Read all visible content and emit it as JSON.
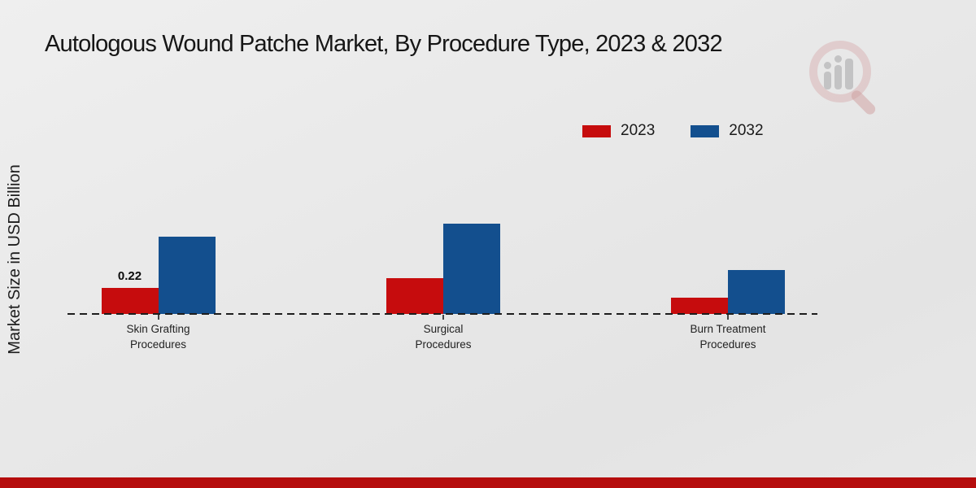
{
  "title": "Autologous Wound Patche Market, By Procedure Type, 2023 & 2032",
  "watermark_icon": "magnifier-bar-chart-logo",
  "colors": {
    "bar_red": "#c60c0d",
    "bar_blue": "#134f8e",
    "footer_stripe_red": "#b50d0d"
  },
  "chart_data": {
    "type": "bar",
    "title": "Autologous Wound Patche Market, By Procedure Type, 2023 & 2032",
    "xlabel": "",
    "ylabel": "Market Size in USD Billion",
    "categories": [
      "Skin Grafting Procedures",
      "Surgical Procedures",
      "Burn Treatment Procedures"
    ],
    "series": [
      {
        "name": "2023",
        "color": "#c60c0d",
        "values": [
          0.22,
          0.3,
          0.14
        ],
        "data_labels": [
          "0.22",
          null,
          null
        ]
      },
      {
        "name": "2032",
        "color": "#134f8e",
        "values": [
          0.65,
          0.76,
          0.37
        ],
        "data_labels": [
          null,
          null,
          null
        ]
      }
    ],
    "ylim": [
      0,
      0.9
    ],
    "grid": false,
    "axis_line_style": "dashed",
    "legend_position": "top-right"
  }
}
